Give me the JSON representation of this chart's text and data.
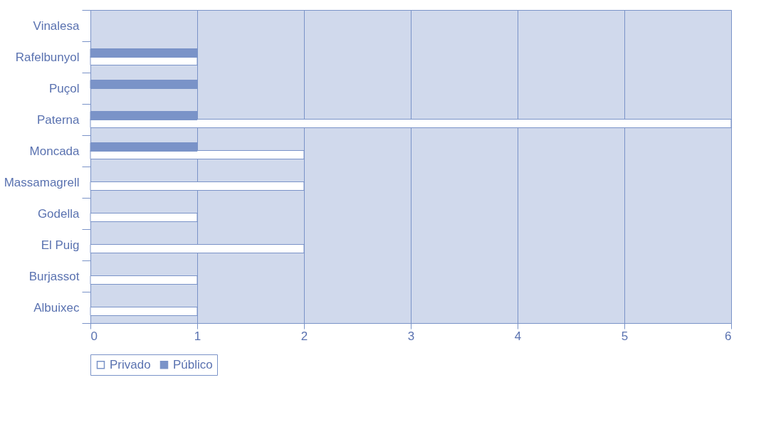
{
  "chart_data": {
    "type": "bar",
    "orientation": "horizontal",
    "categories": [
      "Vinalesa",
      "Rafelbunyol",
      "Puçol",
      "Paterna",
      "Moncada",
      "Massamagrell",
      "Godella",
      "El Puig",
      "Burjassot",
      "Albuixec"
    ],
    "series": [
      {
        "name": "Privado",
        "color": "#ffffff",
        "values": [
          0,
          1,
          0,
          6,
          2,
          2,
          1,
          2,
          1,
          1
        ]
      },
      {
        "name": "Público",
        "color": "#7a93c8",
        "values": [
          0,
          1,
          1,
          1,
          1,
          0,
          0,
          0,
          0,
          0
        ]
      }
    ],
    "xlim": [
      0,
      6
    ],
    "xticks": [
      0,
      1,
      2,
      3,
      4,
      5,
      6
    ],
    "grid": "x",
    "legend": "bottom"
  }
}
